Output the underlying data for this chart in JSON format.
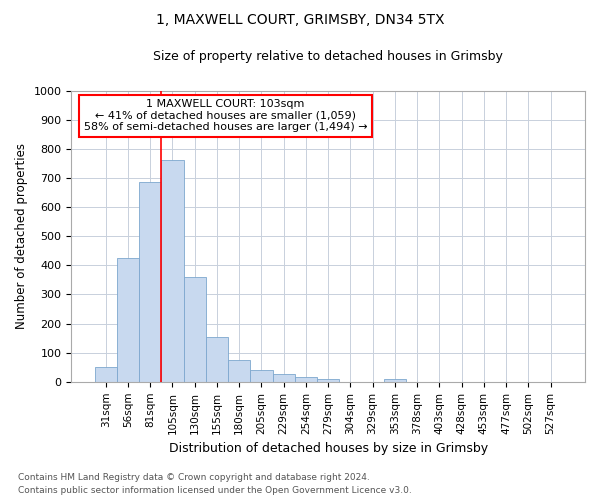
{
  "title_line1": "1, MAXWELL COURT, GRIMSBY, DN34 5TX",
  "title_line2": "Size of property relative to detached houses in Grimsby",
  "xlabel": "Distribution of detached houses by size in Grimsby",
  "ylabel": "Number of detached properties",
  "categories": [
    "31sqm",
    "56sqm",
    "81sqm",
    "105sqm",
    "130sqm",
    "155sqm",
    "180sqm",
    "205sqm",
    "229sqm",
    "254sqm",
    "279sqm",
    "304sqm",
    "329sqm",
    "353sqm",
    "378sqm",
    "403sqm",
    "428sqm",
    "453sqm",
    "477sqm",
    "502sqm",
    "527sqm"
  ],
  "values": [
    52,
    425,
    685,
    762,
    360,
    155,
    75,
    40,
    27,
    18,
    10,
    0,
    0,
    8,
    0,
    0,
    0,
    0,
    0,
    0,
    0
  ],
  "bar_color": "#c8d9ef",
  "bar_edge_color": "#7da7ce",
  "ylim": [
    0,
    1000
  ],
  "yticks": [
    0,
    100,
    200,
    300,
    400,
    500,
    600,
    700,
    800,
    900,
    1000
  ],
  "red_line_x": 3.0,
  "annotation_box_text": "1 MAXWELL COURT: 103sqm\n← 41% of detached houses are smaller (1,059)\n58% of semi-detached houses are larger (1,494) →",
  "footer_line1": "Contains HM Land Registry data © Crown copyright and database right 2024.",
  "footer_line2": "Contains public sector information licensed under the Open Government Licence v3.0.",
  "background_color": "#ffffff",
  "grid_color": "#c8d0dc"
}
